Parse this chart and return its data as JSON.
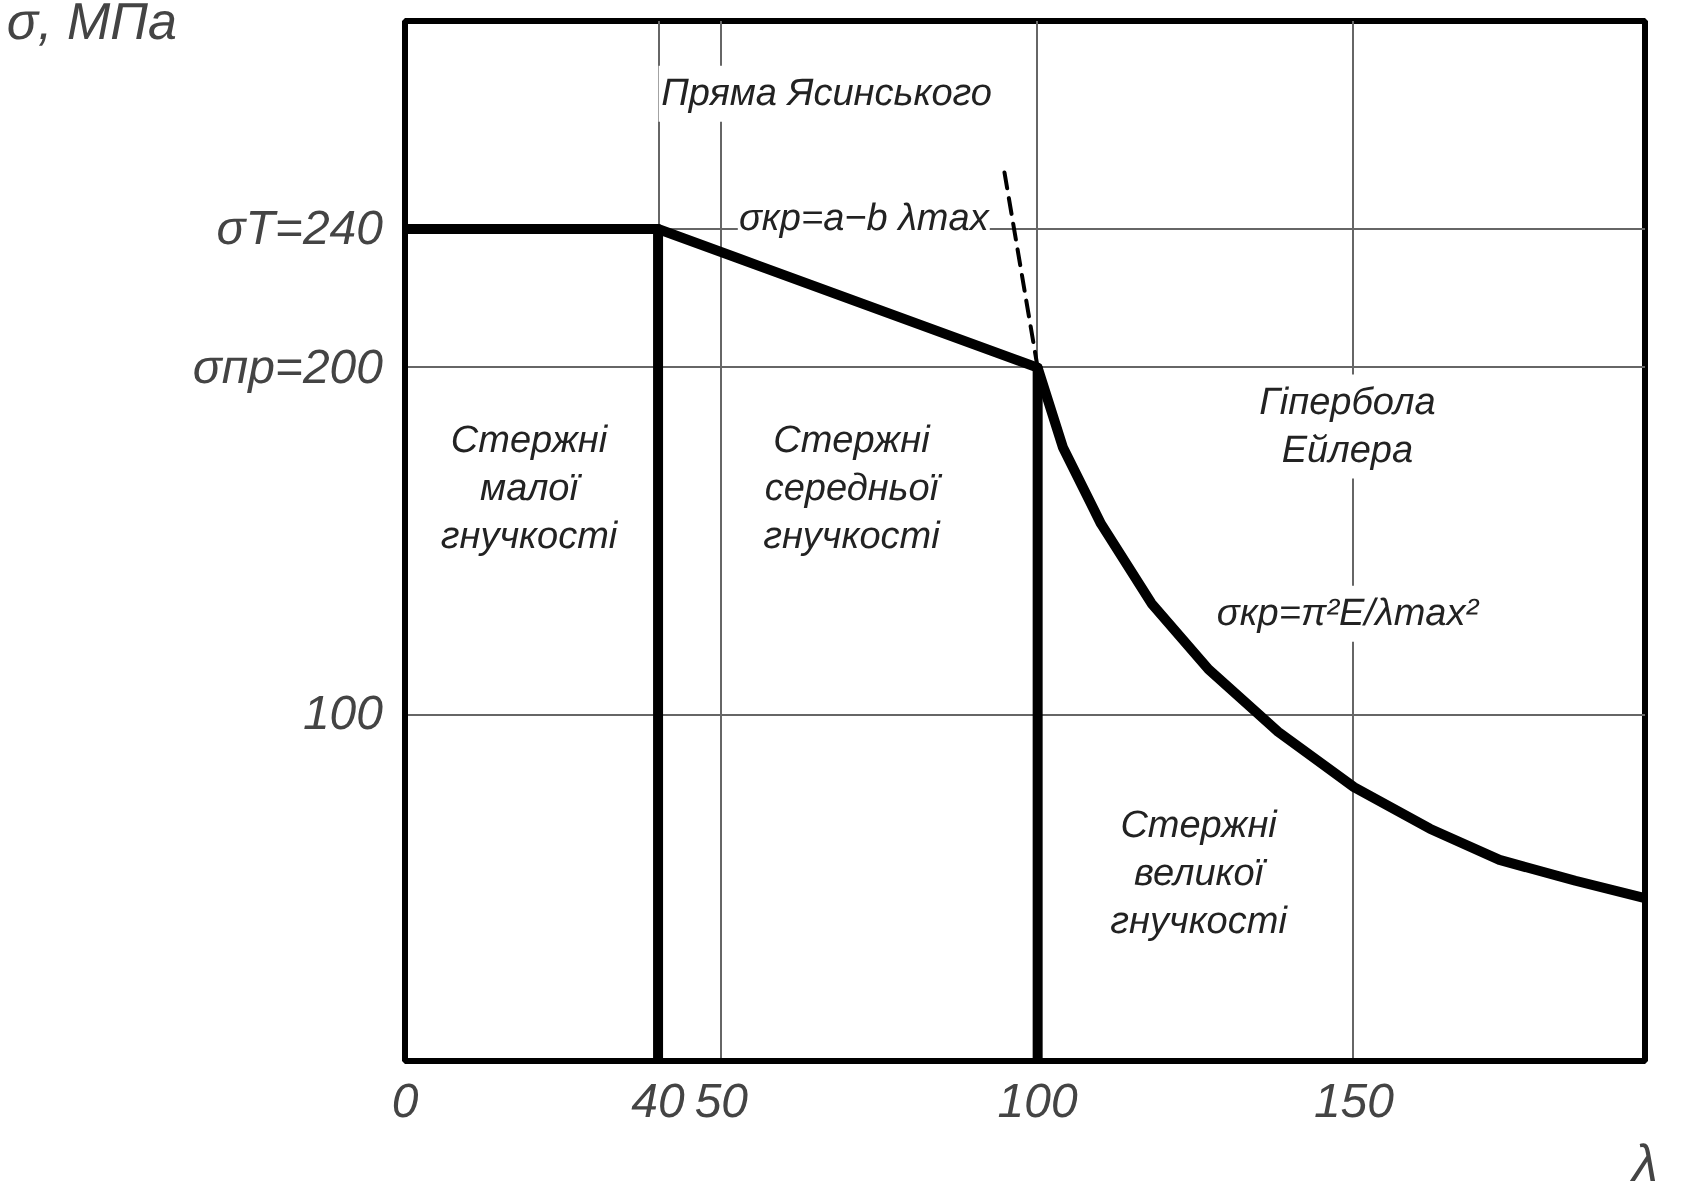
{
  "chart_data": {
    "type": "line",
    "xlabel": "λ",
    "ylabel": "σ, МПа",
    "xlim": [
      0,
      196
    ],
    "ylim": [
      0,
      300
    ],
    "xticks": [
      0,
      40,
      50,
      100,
      150
    ],
    "yticks": [
      {
        "value": 100,
        "label": "100"
      },
      {
        "value": 200,
        "label": "σпр=200"
      },
      {
        "value": 240,
        "label": "σT=240"
      }
    ],
    "grid": true,
    "marker": "none",
    "series": [
      {
        "color": "#000000",
        "x": [
          0,
          40,
          100,
          104,
          110,
          118,
          127,
          138,
          150,
          162,
          173,
          185,
          196
        ],
        "values": [
          240,
          240,
          200,
          177,
          155,
          132,
          113,
          95,
          79,
          67,
          58,
          52,
          47
        ]
      },
      {
        "color": "#000000",
        "x": [
          100,
          94.6
        ],
        "values": [
          200,
          258
        ],
        "line_style": "dashed"
      },
      {
        "color": "#000000",
        "x": [
          40,
          40
        ],
        "values": [
          0,
          240
        ]
      },
      {
        "color": "#000000",
        "x": [
          100,
          100
        ],
        "values": [
          0,
          200
        ]
      }
    ],
    "annotations": [
      "Пряма Ясинського",
      "σкр=a−b λmax",
      "Гіпербола\nЕйлера",
      "σкр=π²E/λmax²",
      "Стержні\nмалої\nгнучкості",
      "Стержні\nсередньої\nгнучкості",
      "Стержні\nвеликої\nгнучкості"
    ]
  }
}
